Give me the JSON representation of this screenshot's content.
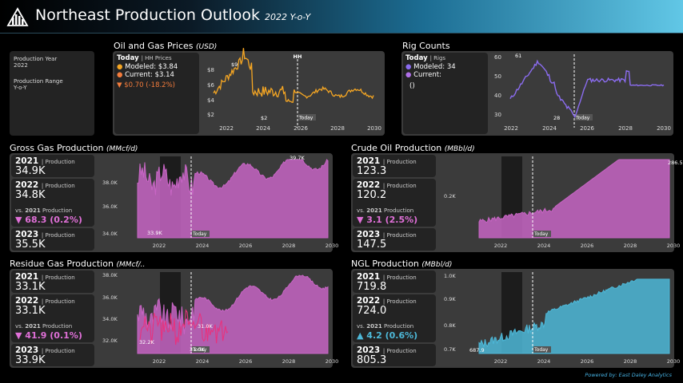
{
  "header": {
    "title": "Northeast Production Outlook",
    "subtitle": "2022 Y-o-Y"
  },
  "filters": {
    "year_label": "Production Year",
    "year_value": "2022",
    "range_label": "Production Range",
    "range_value": "Y-o-Y"
  },
  "prices": {
    "title": "Oil and Gas Prices",
    "unit": "(USD)",
    "today_label": "Today",
    "today_sub": "| HH Prices",
    "modeled_label": "Modeled:",
    "modeled_value": "$3.84",
    "current_label": "Current:",
    "current_value": "$3.14",
    "change": "▼ $0.70",
    "change_pct": "(-18.2%)",
    "hh_label": "HH",
    "today_marker": "Today",
    "peak_label": "$9",
    "low_label": "$2",
    "y_ticks": [
      "$8",
      "$6",
      "$4",
      "$2"
    ],
    "x_ticks": [
      "2022",
      "2024",
      "2026",
      "2028",
      "2030"
    ],
    "colors": {
      "line": "#f5a623",
      "modeled": "#f5a623",
      "current": "#f47c3c",
      "change": "#f47c3c"
    }
  },
  "rigs": {
    "title": "Rig Counts",
    "today_label": "Today",
    "today_sub": "| Rigs",
    "modeled_label": "Modeled:",
    "modeled_value": "34",
    "current_label": "Current:",
    "current_value": "",
    "extra": "()",
    "today_marker": "Today",
    "peak_label": "61",
    "low_label": "28",
    "y_ticks": [
      "60",
      "50",
      "40",
      "30"
    ],
    "x_ticks": [
      "2022",
      "2024",
      "2026",
      "2028",
      "2030"
    ],
    "colors": {
      "line": "#8b6cf0"
    }
  },
  "gross": {
    "title": "Gross Gas Production",
    "unit": "(MMcf/d)",
    "k1_year": "2021",
    "k1_label": "| Production",
    "k1_value": "34.9K",
    "k2_year": "2022",
    "k2_label": "| Production",
    "k2_value": "34.8K",
    "vs_prefix": "vs.",
    "vs_year": "2021",
    "vs_suffix": "Production",
    "change": "▼ 68.3",
    "change_pct": "(0.2%)",
    "k3_year": "2023",
    "k3_label": "| Production",
    "k3_value": "35.5K",
    "y_ticks": [
      "38.0K",
      "36.0K",
      "34.0K"
    ],
    "x_ticks": [
      "2022",
      "2024",
      "2026",
      "2028",
      "2030"
    ],
    "peak_label": "39.7K",
    "low_label": "33.9K",
    "today_marker": "Today",
    "colors": {
      "fill": "#c765c4",
      "change": "#e070d8"
    }
  },
  "crude": {
    "title": "Crude Oil Production",
    "unit": "(MBbl/d)",
    "k1_year": "2021",
    "k1_label": "| Production",
    "k1_value": "123.3",
    "k2_year": "2022",
    "k2_label": "| Production",
    "k2_value": "120.2",
    "vs_prefix": "vs.",
    "vs_year": "2021",
    "vs_suffix": "Production",
    "change": "▼ 3.1",
    "change_pct": "(2.5%)",
    "k3_year": "2023",
    "k3_label": "| Production",
    "k3_value": "147.5",
    "y_ticks": [
      "0.2K"
    ],
    "x_ticks": [
      "2022",
      "2024",
      "2026",
      "2028",
      "2030"
    ],
    "peak_label": "286.5",
    "today_marker": "Today",
    "colors": {
      "fill": "#c765c4",
      "change": "#e070d8"
    }
  },
  "residue": {
    "title": "Residue Gas Production",
    "unit": "(MMcf/..",
    "k1_year": "2021",
    "k1_label": "| Production",
    "k1_value": "33.1K",
    "k2_year": "2022",
    "k2_label": "| Production",
    "k2_value": "33.1K",
    "vs_prefix": "vs.",
    "vs_year": "2021",
    "vs_suffix": "Production",
    "change": "▼ 41.9",
    "change_pct": "(0.1%)",
    "k3_year": "2023",
    "k3_label": "| Production",
    "k3_value": "33.9K",
    "y_ticks": [
      "38.0K",
      "36.0K",
      "34.0K",
      "32.0K"
    ],
    "x_ticks": [
      "2022",
      "2024",
      "2026",
      "2028",
      "2030"
    ],
    "label_a": "32.2K",
    "label_b": "31.0K",
    "label_c": "31.0K",
    "today_marker": "Today",
    "colors": {
      "fill": "#c765c4",
      "line": "#e8327e",
      "change": "#e070d8"
    }
  },
  "ngl": {
    "title": "NGL Production",
    "unit": "(MBbl/d)",
    "k1_year": "2021",
    "k1_label": "| Production",
    "k1_value": "719.8",
    "k2_year": "2022",
    "k2_label": "| Production",
    "k2_value": "724.0",
    "vs_prefix": "vs.",
    "vs_year": "2021",
    "vs_suffix": "Production",
    "change": "▲ 4.2",
    "change_pct": "(0.6%)",
    "k3_year": "2023",
    "k3_label": "| Production",
    "k3_value": "805.3",
    "y_ticks": [
      "1.0K",
      "0.9K",
      "0.8K",
      "0.7K"
    ],
    "x_ticks": [
      "2022",
      "2024",
      "2026",
      "2028",
      "2030"
    ],
    "low_label": "687.9",
    "today_marker": "Today",
    "colors": {
      "fill": "#4db8d8",
      "change": "#4db8d8"
    }
  },
  "footer": {
    "text": "Powered by: East Daley Analytics"
  }
}
